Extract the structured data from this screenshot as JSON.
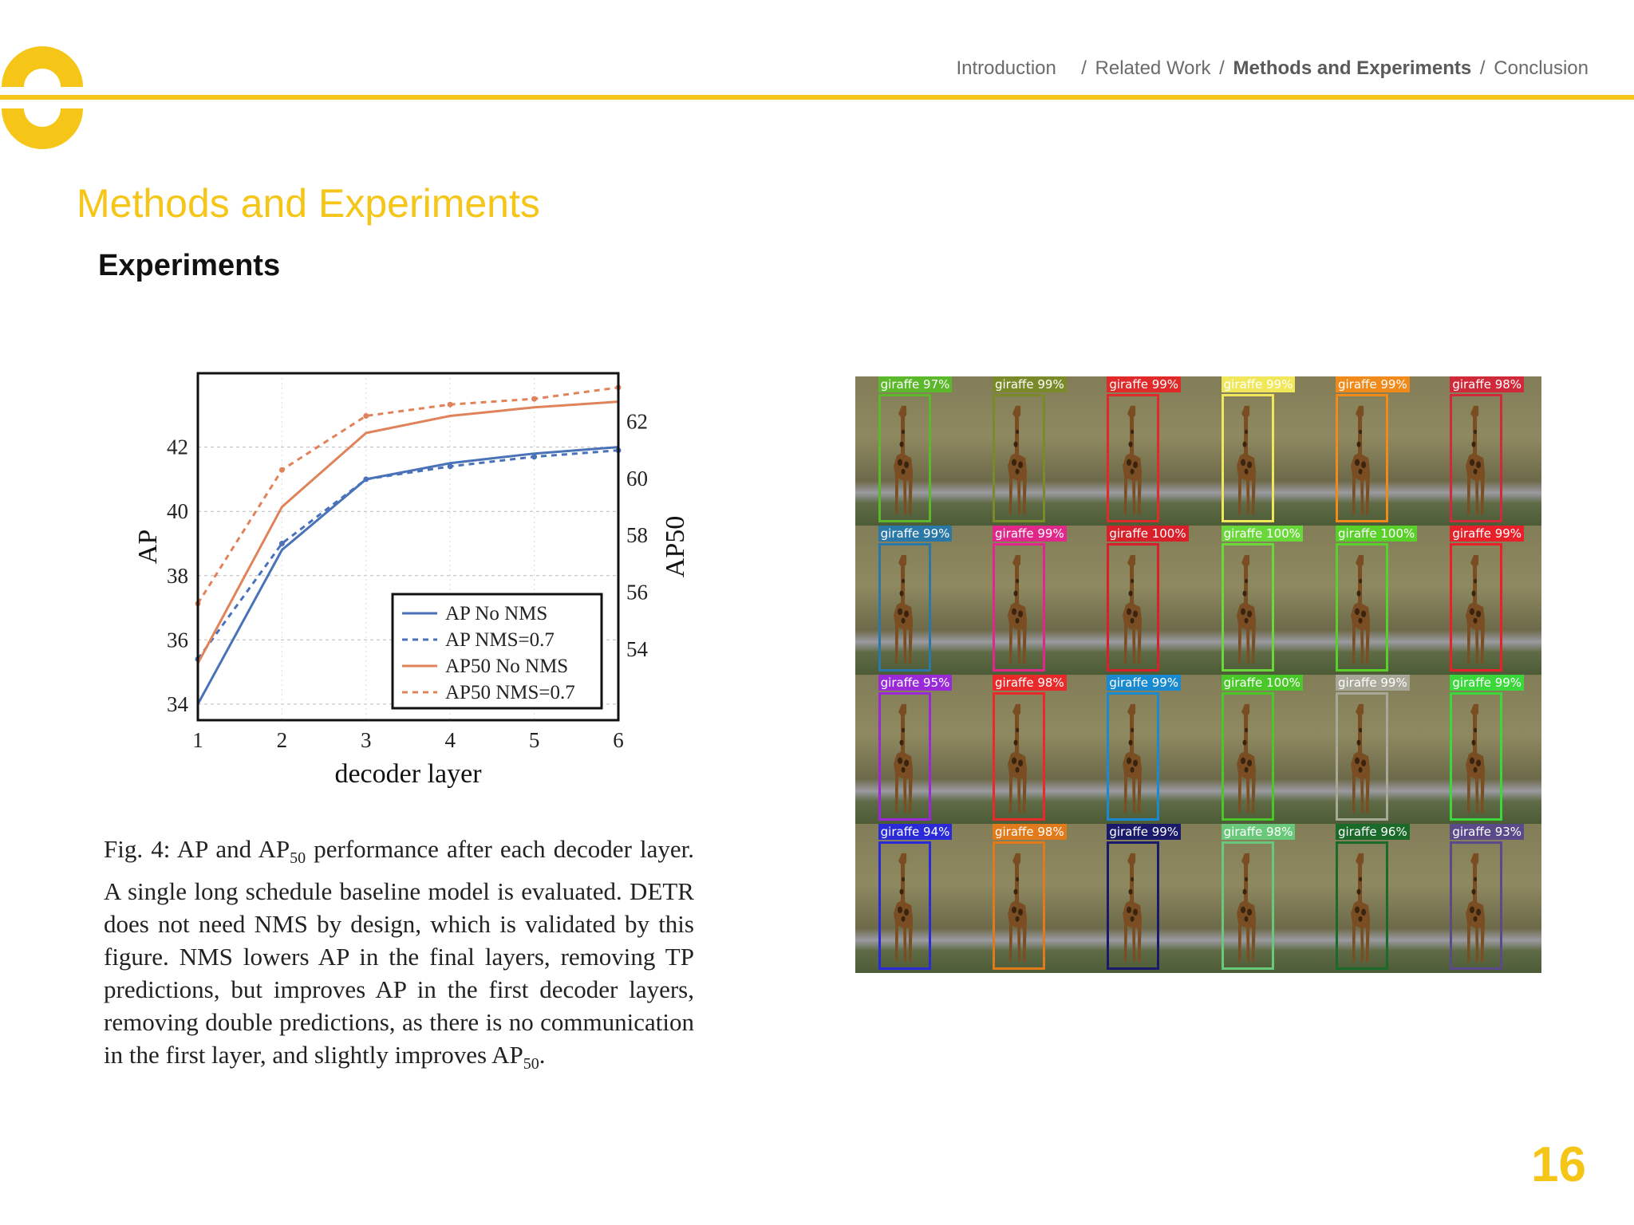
{
  "header": {
    "breadcrumb": [
      {
        "label": "Introduction",
        "active": false
      },
      {
        "label": "Related Work",
        "active": false
      },
      {
        "label": "Methods and Experiments",
        "active": true
      },
      {
        "label": "Conclusion",
        "active": false
      }
    ],
    "separator": "/"
  },
  "page_title": "Methods and Experiments",
  "section_title": "Experiments",
  "slide_number": "16",
  "colors": {
    "accent": "#f5c518",
    "ap_blue": "#4a72b8",
    "ap50_orange": "#e0835a"
  },
  "chart_data": {
    "type": "line",
    "x": [
      1,
      2,
      3,
      4,
      5,
      6
    ],
    "x_tick_labels": [
      "1",
      "2",
      "3",
      "4",
      "5",
      "6"
    ],
    "xlabel": "decoder layer",
    "ylabel": "AP",
    "ylabel_right": "AP50",
    "ylim": [
      33.5,
      44.3
    ],
    "ylim_right": [
      51.5,
      63.7
    ],
    "y_ticks": [
      "34",
      "36",
      "38",
      "40",
      "42"
    ],
    "y_ticks_right": [
      "54",
      "56",
      "58",
      "60",
      "62"
    ],
    "grid": true,
    "legend_position": "bottom-right",
    "series": [
      {
        "name": "AP No NMS",
        "axis": "left",
        "style": "solid",
        "color": "#4a72b8",
        "values": [
          34.0,
          38.8,
          41.0,
          41.5,
          41.8,
          42.0
        ]
      },
      {
        "name": "AP NMS=0.7",
        "axis": "left",
        "style": "dashed",
        "color": "#4a72b8",
        "values": [
          35.4,
          39.0,
          41.0,
          41.4,
          41.7,
          41.9
        ]
      },
      {
        "name": "AP50 No NMS",
        "axis": "right",
        "style": "solid",
        "color": "#e0835a",
        "values": [
          53.5,
          59.0,
          61.6,
          62.2,
          62.5,
          62.7
        ]
      },
      {
        "name": "AP50 NMS=0.7",
        "axis": "right",
        "style": "dashed",
        "color": "#e0835a",
        "values": [
          55.6,
          60.3,
          62.2,
          62.6,
          62.8,
          63.2
        ]
      }
    ]
  },
  "caption": {
    "fig": "Fig. 4:",
    "part1": "AP and AP",
    "sub1": "50",
    "part2": "performance after each decoder layer. A single long schedule baseline model is evaluated. DETR does not need NMS by design, which is validated by this figure. NMS lowers AP in the final layers, removing TP predictions, but improves AP in the first decoder layers, removing double predictions, as there is no communication in the first layer, and slightly improves AP",
    "sub2": "50",
    "end": "."
  },
  "detections": [
    {
      "label": "giraffe 97%",
      "color": "#5ab82a"
    },
    {
      "label": "giraffe 99%",
      "color": "#7a8a2a"
    },
    {
      "label": "giraffe 99%",
      "color": "#e02a2a"
    },
    {
      "label": "giraffe 99%",
      "color": "#f0e85a"
    },
    {
      "label": "giraffe 99%",
      "color": "#f08a1a"
    },
    {
      "label": "giraffe 98%",
      "color": "#d02a3a"
    },
    {
      "label": "giraffe 99%",
      "color": "#2a78a8"
    },
    {
      "label": "giraffe 99%",
      "color": "#e0288a"
    },
    {
      "label": "giraffe 100%",
      "color": "#d8202a"
    },
    {
      "label": "giraffe 100%",
      "color": "#6ad83a"
    },
    {
      "label": "giraffe 100%",
      "color": "#5ad02a"
    },
    {
      "label": "giraffe 99%",
      "color": "#e8202a"
    },
    {
      "label": "giraffe 95%",
      "color": "#9a2ad8"
    },
    {
      "label": "giraffe 98%",
      "color": "#e82a2a"
    },
    {
      "label": "giraffe 99%",
      "color": "#1a8ad0"
    },
    {
      "label": "giraffe 100%",
      "color": "#4ac82a"
    },
    {
      "label": "giraffe 99%",
      "color": "#a8a898"
    },
    {
      "label": "giraffe 99%",
      "color": "#3ad83a"
    },
    {
      "label": "giraffe 94%",
      "color": "#2a2ad8"
    },
    {
      "label": "giraffe 98%",
      "color": "#e07a1a"
    },
    {
      "label": "giraffe 99%",
      "color": "#1a1a6a"
    },
    {
      "label": "giraffe 98%",
      "color": "#6ac87a"
    },
    {
      "label": "giraffe 96%",
      "color": "#1a6a2a"
    },
    {
      "label": "giraffe 93%",
      "color": "#5a4a8a"
    }
  ]
}
